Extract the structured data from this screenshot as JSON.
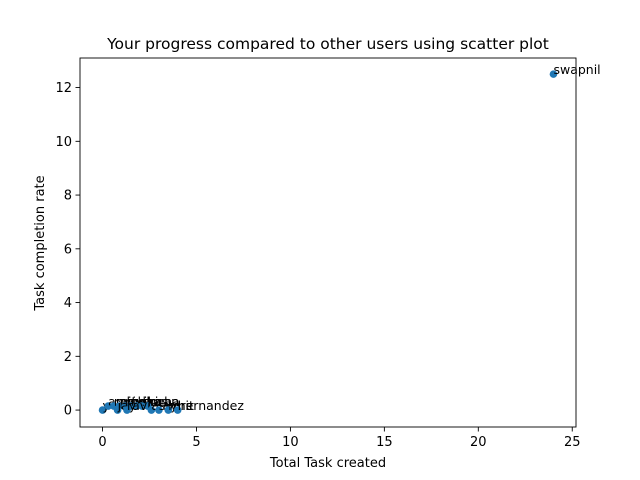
{
  "chart_data": {
    "type": "scatter",
    "title": "Your progress compared to other users using scatter plot",
    "xlabel": "Total Task created",
    "ylabel": "Task completion rate",
    "xlim": [
      -1.2,
      25.2
    ],
    "ylim": [
      -0.63,
      13.1
    ],
    "xticks": [
      0,
      5,
      10,
      15,
      20,
      25
    ],
    "yticks": [
      0,
      2,
      4,
      6,
      8,
      10,
      12
    ],
    "grid": false,
    "legend": "none",
    "marker_color": "#1f77b4",
    "points": [
      {
        "x": 24,
        "y": 12.5,
        "label": "swapnil"
      },
      {
        "x": 0,
        "y": 0,
        "label": "y"
      },
      {
        "x": 0.3,
        "y": 0.15,
        "label": "amit"
      },
      {
        "x": 0.6,
        "y": 0.15,
        "label": "rahul"
      },
      {
        "x": 0.9,
        "y": 0.15,
        "label": "priya"
      },
      {
        "x": 1.2,
        "y": 0.15,
        "label": "rohan"
      },
      {
        "x": 1.5,
        "y": 0.15,
        "label": "neha"
      },
      {
        "x": 1.8,
        "y": 0.15,
        "label": "vikas"
      },
      {
        "x": 2.1,
        "y": 0.15,
        "label": "sneha"
      },
      {
        "x": 2.4,
        "y": 0.15,
        "label": "kiran"
      },
      {
        "x": 0.8,
        "y": 0,
        "label": "jay"
      },
      {
        "x": 1.3,
        "y": 0,
        "label": "ravi"
      },
      {
        "x": 2.6,
        "y": 0,
        "label": "ajay"
      },
      {
        "x": 3,
        "y": 0,
        "label": "sumit"
      },
      {
        "x": 3.5,
        "y": 0,
        "label": "mrs"
      },
      {
        "x": 4,
        "y": 0,
        "label": "hernandez"
      }
    ]
  }
}
